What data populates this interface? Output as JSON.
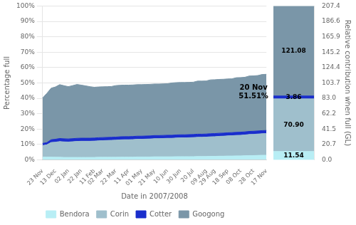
{
  "chart_data": [
    {
      "type": "area",
      "stacked": true,
      "xlabel": "Date in 2007/2008",
      "ylabel": "Percentage full",
      "categories": [
        "23 Nov",
        null,
        null,
        "13 Dec",
        null,
        null,
        "02 Jan",
        null,
        null,
        "22 Jan",
        null,
        null,
        "11 Feb",
        null,
        "02 Mar",
        null,
        null,
        "22 Mar",
        null,
        null,
        "11 Apr",
        null,
        null,
        "01 May",
        null,
        null,
        "21 May",
        null,
        null,
        "10 Jun",
        null,
        null,
        "30 Jun",
        null,
        null,
        "20 Jul",
        null,
        null,
        "09 Aug",
        null,
        "29 Aug",
        null,
        null,
        "18 Sep",
        null,
        null,
        "08 Oct",
        null,
        null,
        "28 Oct",
        null,
        null,
        "17 Nov"
      ],
      "series": [
        {
          "name": "Bendora",
          "color": "#b8eef5",
          "values": [
            1.8,
            1.8,
            1.8,
            1.7,
            1.7,
            1.6,
            1.6,
            1.6,
            1.6,
            1.6,
            1.6,
            1.6,
            1.6,
            1.7,
            1.7,
            1.7,
            1.7,
            1.7,
            1.8,
            1.8,
            1.8,
            1.8,
            1.9,
            1.9,
            1.9,
            1.9,
            2.0,
            2.0,
            2.0,
            2.0,
            2.0,
            2.1,
            2.1,
            2.1,
            2.1,
            2.1,
            2.2,
            2.2,
            2.2,
            2.3,
            2.3,
            2.4,
            2.4,
            2.5,
            2.5,
            2.6,
            2.6,
            2.7,
            2.8,
            2.8,
            2.9,
            3.0,
            3.0
          ]
        },
        {
          "name": "Corin",
          "color": "#9fbfcc",
          "values": [
            7.5,
            8.0,
            9.5,
            9.8,
            10.2,
            10.1,
            10.0,
            10.2,
            10.4,
            10.5,
            10.5,
            10.5,
            10.6,
            10.7,
            10.8,
            10.9,
            11.0,
            11.1,
            11.2,
            11.3,
            11.3,
            11.4,
            11.5,
            11.5,
            11.6,
            11.7,
            11.8,
            11.8,
            11.9,
            12.0,
            12.0,
            12.1,
            12.2,
            12.2,
            12.3,
            12.4,
            12.5,
            12.5,
            12.6,
            12.7,
            12.8,
            12.9,
            13.0,
            13.1,
            13.2,
            13.3,
            13.4,
            13.5,
            13.7,
            13.8,
            13.9,
            14.0,
            14.1
          ]
        },
        {
          "name": "Cotter",
          "color": "#1a2ecc",
          "values": [
            1.4,
            1.4,
            1.8,
            1.9,
            2.0,
            2.0,
            2.0,
            2.0,
            2.0,
            2.0,
            2.0,
            2.0,
            2.0,
            2.0,
            2.0,
            2.0,
            2.0,
            2.0,
            2.0,
            2.0,
            2.0,
            2.0,
            2.0,
            2.0,
            2.0,
            2.0,
            2.0,
            2.0,
            2.0,
            2.0,
            2.0,
            2.0,
            2.0,
            2.0,
            2.0,
            2.0,
            2.0,
            2.0,
            2.0,
            2.0,
            2.0,
            2.0,
            2.0,
            2.0,
            2.0,
            2.0,
            2.0,
            2.0,
            2.0,
            2.0,
            2.0,
            2.0,
            2.0
          ]
        },
        {
          "name": "Googong",
          "color": "#7a96a8",
          "values": [
            29.5,
            32.0,
            33.5,
            34.0,
            35.0,
            34.5,
            34.0,
            34.5,
            35.0,
            34.5,
            34.0,
            33.5,
            33.0,
            33.0,
            33.0,
            33.0,
            33.0,
            33.5,
            33.5,
            33.5,
            33.5,
            33.5,
            33.5,
            33.5,
            33.5,
            33.5,
            33.5,
            33.5,
            33.5,
            33.5,
            34.0,
            34.0,
            34.0,
            34.0,
            34.0,
            34.0,
            34.5,
            34.5,
            34.5,
            35.0,
            35.0,
            35.0,
            35.0,
            35.0,
            35.0,
            35.5,
            35.5,
            35.5,
            36.0,
            36.0,
            36.0,
            36.5,
            36.5
          ]
        }
      ],
      "ylim": [
        0,
        100
      ],
      "yticks": [
        {
          "value": 0,
          "label": "0%"
        },
        {
          "value": 10,
          "label": "10%"
        },
        {
          "value": 20,
          "label": "20%"
        },
        {
          "value": 30,
          "label": "30%"
        },
        {
          "value": 40,
          "label": "40%"
        },
        {
          "value": 50,
          "label": "50%"
        },
        {
          "value": 60,
          "label": "60%"
        },
        {
          "value": 70,
          "label": "70%"
        },
        {
          "value": 80,
          "label": "80%"
        },
        {
          "value": 90,
          "label": "90%"
        },
        {
          "value": 100,
          "label": "100%"
        }
      ],
      "grid": true,
      "legend": "bottom",
      "annotations": [
        {
          "text": "20 Nov\n51.51%",
          "x": 49,
          "y": 44
        }
      ]
    },
    {
      "type": "bar",
      "stacked": true,
      "data_labels": true,
      "ylabel": "Relative contribution when full (GL)",
      "categories": [
        null
      ],
      "series": [
        {
          "name": "Bendora",
          "color": "#b8eef5",
          "values": [
            11.54
          ],
          "value_labels": [
            "11.54"
          ]
        },
        {
          "name": "Corin",
          "color": "#9fbfcc",
          "values": [
            70.9
          ],
          "value_labels": [
            "70.90"
          ]
        },
        {
          "name": "Cotter",
          "color": "#1a2ecc",
          "values": [
            3.86
          ],
          "value_labels": [
            "3.86"
          ]
        },
        {
          "name": "Googong",
          "color": "#7a96a8",
          "values": [
            121.08
          ],
          "value_labels": [
            "121.08"
          ]
        }
      ],
      "ylim": [
        0,
        207.4
      ],
      "yticks": [
        {
          "value": 0,
          "label": "0.0"
        },
        20.7,
        41.5,
        62.2,
        {
          "value": 83,
          "label": "83.0"
        },
        103.7,
        124.4,
        145.2,
        165.9,
        186.6,
        207.4
      ]
    }
  ]
}
